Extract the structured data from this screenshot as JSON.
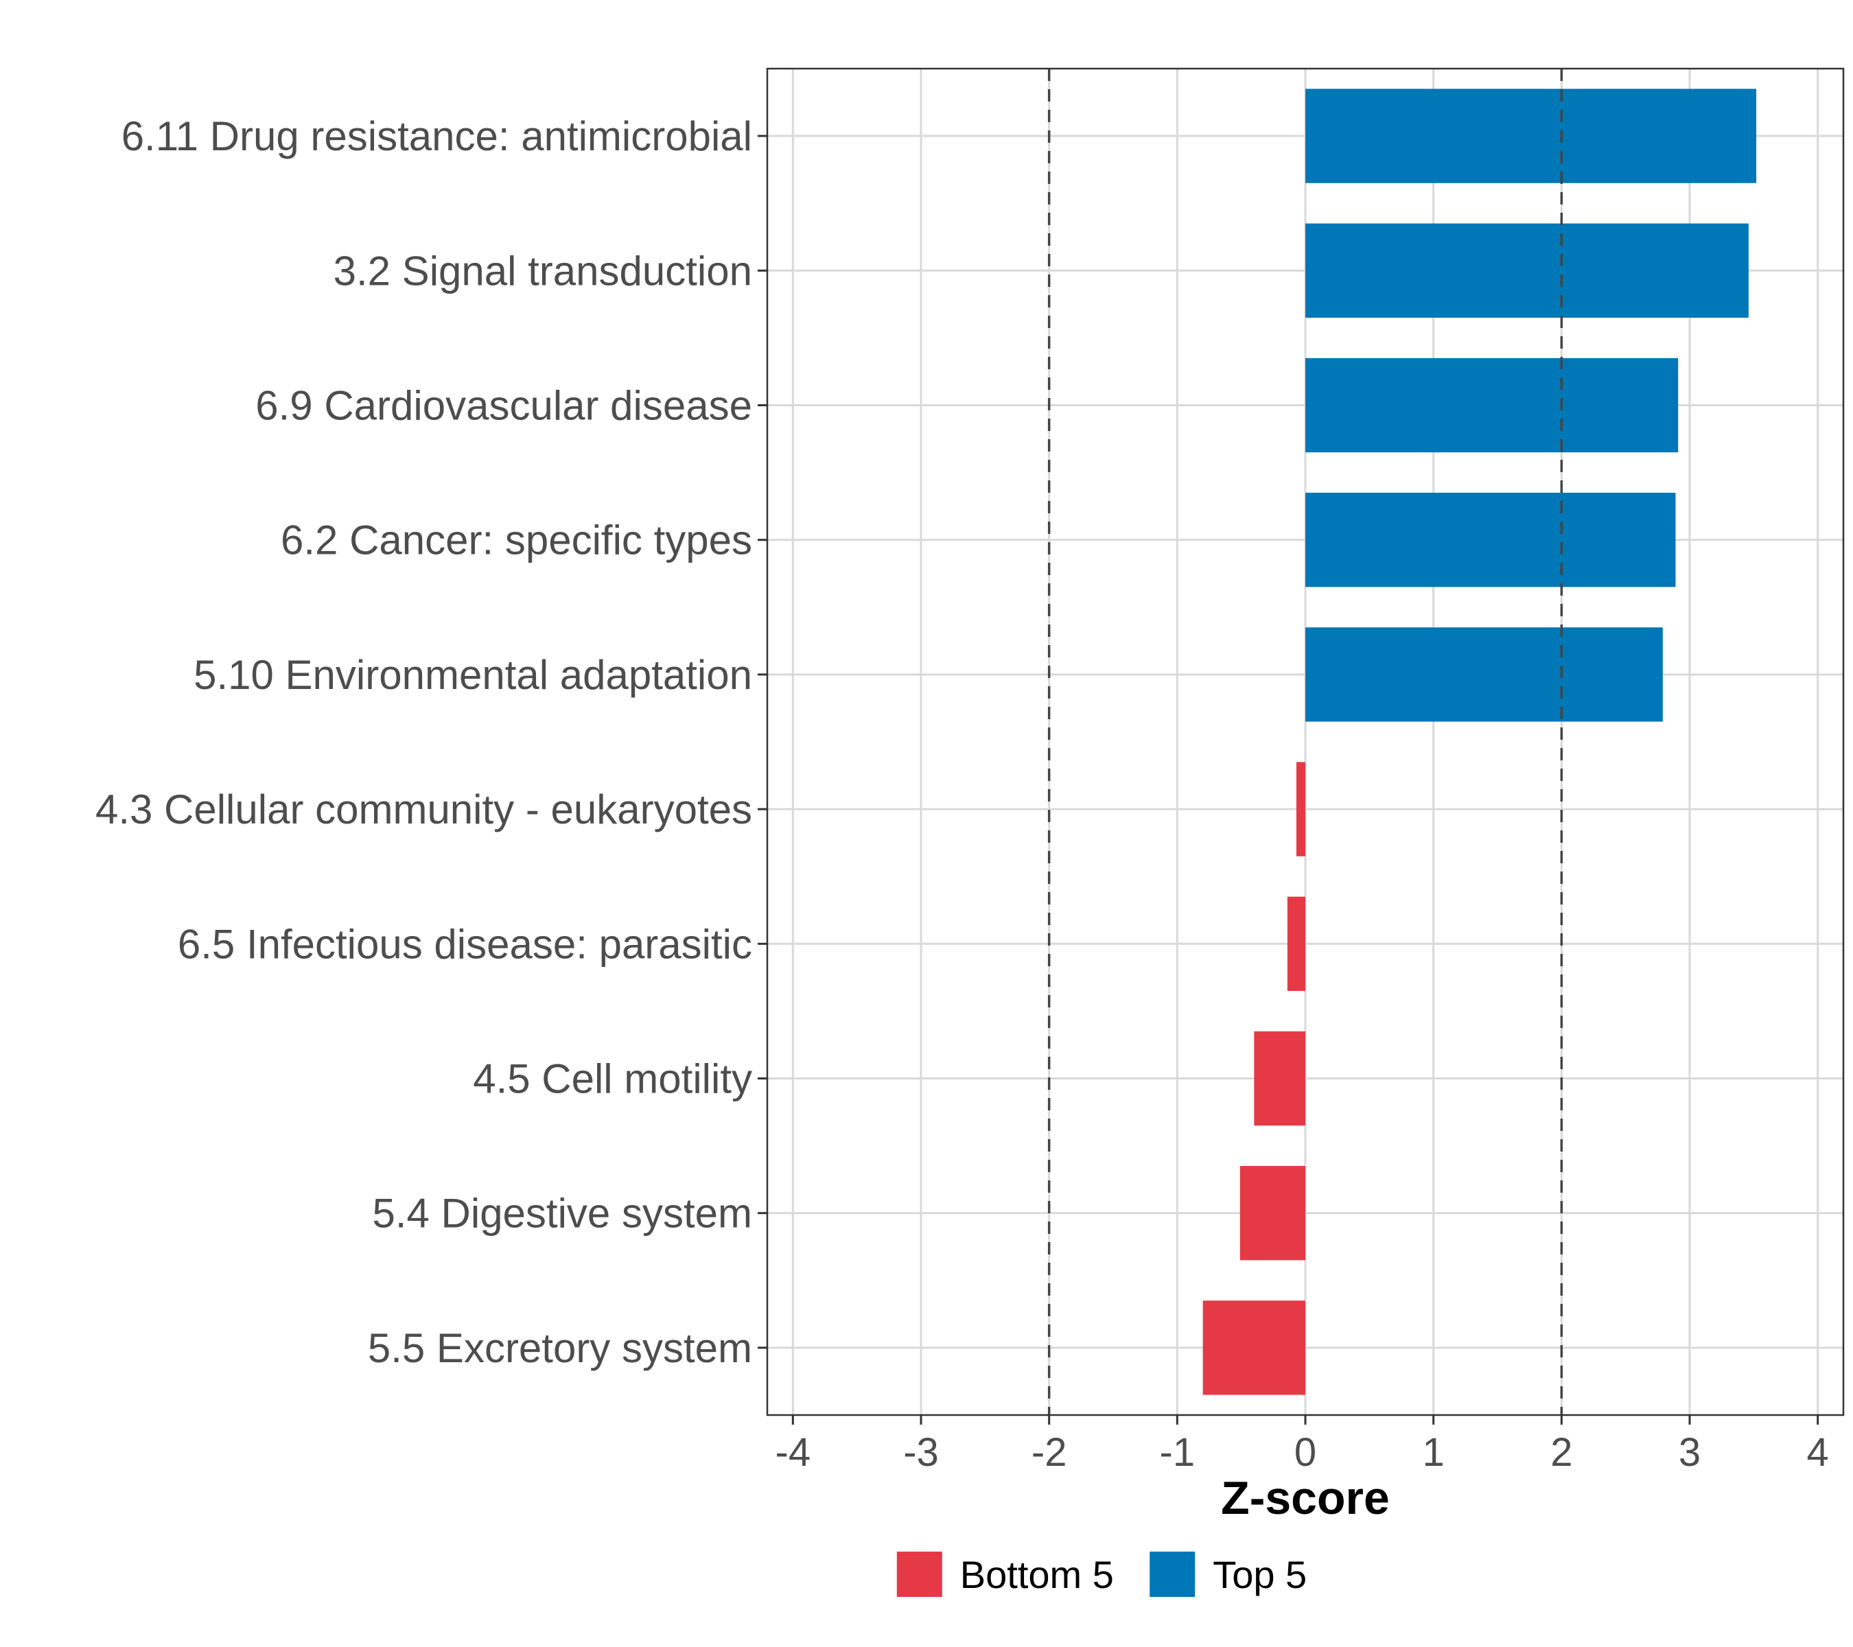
{
  "chart_data": {
    "type": "bar",
    "orientation": "horizontal",
    "title": "",
    "xlabel": "Z-score",
    "ylabel": "",
    "xlim": [
      -4.2,
      4.2
    ],
    "x_ticks": [
      -4,
      -3,
      -2,
      -1,
      0,
      1,
      2,
      3,
      4
    ],
    "x_tick_labels": [
      "-4",
      "-3",
      "-2",
      "-1",
      "0",
      "1",
      "2",
      "3",
      "4"
    ],
    "grid": true,
    "reference_lines": [
      -2,
      2
    ],
    "categories": [
      "6.11 Drug resistance: antimicrobial",
      "3.2 Signal transduction",
      "6.9 Cardiovascular disease",
      "6.2 Cancer: specific types",
      "5.10 Environmental adaptation",
      "4.3 Cellular community - eukaryotes",
      "6.5 Infectious disease: parasitic",
      "4.5 Cell motility",
      "5.4 Digestive system",
      "5.5 Excretory system"
    ],
    "values": [
      3.52,
      3.46,
      2.91,
      2.89,
      2.79,
      -0.07,
      -0.14,
      -0.4,
      -0.51,
      -0.8
    ],
    "groups": [
      "Top 5",
      "Top 5",
      "Top 5",
      "Top 5",
      "Top 5",
      "Bottom 5",
      "Bottom 5",
      "Bottom 5",
      "Bottom 5",
      "Bottom 5"
    ],
    "legend": {
      "position": "bottom",
      "entries": [
        {
          "label": "Bottom 5",
          "color": "#E63946"
        },
        {
          "label": "Top 5",
          "color": "#0077B6"
        }
      ]
    },
    "colors": {
      "Top 5": "#0077B6",
      "Bottom 5": "#E63946"
    }
  }
}
